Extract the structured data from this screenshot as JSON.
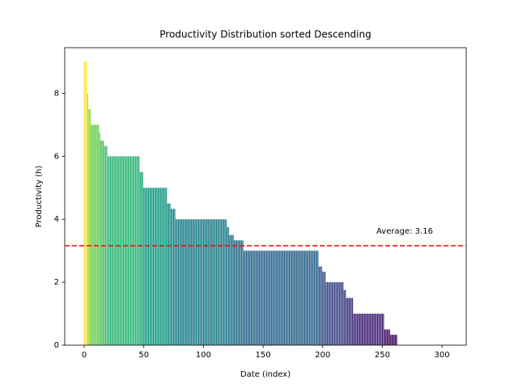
{
  "chart_data": {
    "type": "bar",
    "title": "Productivity Distribution sorted Descending",
    "x_label": "Date (index)",
    "y_label": "Productivity (h)",
    "colormap": "viridis",
    "values": [
      9,
      9,
      9,
      8,
      7.5,
      7.5,
      7,
      7,
      7,
      7,
      7,
      7,
      7,
      6.75,
      6.5,
      6.5,
      6.5,
      6.33,
      6.33,
      6.33,
      6,
      6,
      6,
      6,
      6,
      6,
      6,
      6,
      6,
      6,
      6,
      6,
      6,
      6,
      6,
      6,
      6,
      6,
      6,
      6,
      6,
      6,
      6,
      6,
      6,
      6,
      6,
      5.5,
      5.5,
      5.5,
      5,
      5,
      5,
      5,
      5,
      5,
      5,
      5,
      5,
      5,
      5,
      5,
      5,
      5,
      5,
      5,
      5,
      5,
      5,
      5,
      4.5,
      4.5,
      4.5,
      4.33,
      4.33,
      4.33,
      4.33,
      4,
      4,
      4,
      4,
      4,
      4,
      4,
      4,
      4,
      4,
      4,
      4,
      4,
      4,
      4,
      4,
      4,
      4,
      4,
      4,
      4,
      4,
      4,
      4,
      4,
      4,
      4,
      4,
      4,
      4,
      4,
      4,
      4,
      4,
      4,
      4,
      4,
      4,
      4,
      4,
      4,
      4,
      4,
      3.75,
      3.75,
      3.5,
      3.5,
      3.5,
      3.5,
      3.33,
      3.33,
      3.33,
      3.33,
      3.33,
      3.33,
      3.33,
      3.33,
      3,
      3,
      3,
      3,
      3,
      3,
      3,
      3,
      3,
      3,
      3,
      3,
      3,
      3,
      3,
      3,
      3,
      3,
      3,
      3,
      3,
      3,
      3,
      3,
      3,
      3,
      3,
      3,
      3,
      3,
      3,
      3,
      3,
      3,
      3,
      3,
      3,
      3,
      3,
      3,
      3,
      3,
      3,
      3,
      3,
      3,
      3,
      3,
      3,
      3,
      3,
      3,
      3,
      3,
      3,
      3,
      3,
      3,
      3,
      3,
      3,
      3,
      3,
      2.5,
      2.5,
      2.5,
      2.33,
      2.33,
      2.33,
      2,
      2,
      2,
      2,
      2,
      2,
      2,
      2,
      2,
      2,
      2,
      2,
      2,
      2,
      2,
      1.75,
      1.75,
      1.5,
      1.5,
      1.5,
      1.5,
      1.5,
      1.5,
      1,
      1,
      1,
      1,
      1,
      1,
      1,
      1,
      1,
      1,
      1,
      1,
      1,
      1,
      1,
      1,
      1,
      1,
      1,
      1,
      1,
      1,
      1,
      1,
      1,
      1,
      0.5,
      0.5,
      0.5,
      0.5,
      0.5,
      0.33,
      0.33,
      0.33,
      0.33,
      0.33,
      0.33,
      0,
      0,
      0,
      0,
      0,
      0,
      0,
      0,
      0,
      0,
      0,
      0,
      0,
      0,
      0,
      0,
      0,
      0,
      0,
      0,
      0,
      0,
      0,
      0,
      0,
      0,
      0,
      0,
      0,
      0,
      0,
      0,
      0,
      0,
      0,
      0,
      0,
      0,
      0,
      0,
      0,
      0,
      0
    ],
    "average": 3.16,
    "average_label": "Average: 3.16",
    "average_color": "#ff0000",
    "xlim": [
      -16.3,
      320.3
    ],
    "xticks": [
      0,
      50,
      100,
      150,
      200,
      250,
      300
    ],
    "ylim": [
      0,
      9.45
    ],
    "yticks": [
      0,
      2,
      4,
      6,
      8
    ]
  }
}
